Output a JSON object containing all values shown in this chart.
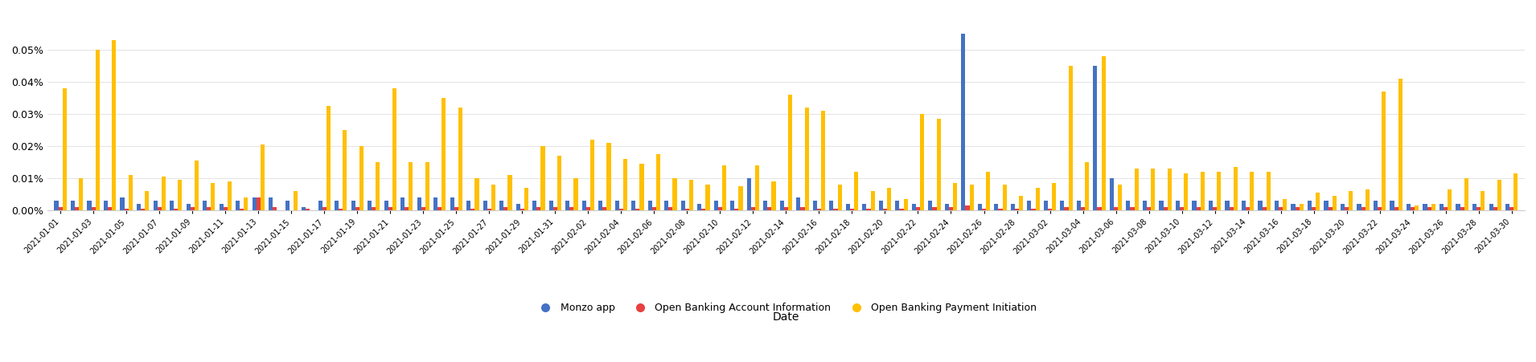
{
  "xlabel": "Date",
  "colors": {
    "monzo_app": "#4472C4",
    "ob_account": "#E84040",
    "ob_payment": "#FFC000"
  },
  "legend": [
    "Monzo app",
    "Open Banking Account Information",
    "Open Banking Payment Initiation"
  ],
  "background_color": "#ffffff",
  "grid_color": "#e5e5e5",
  "dates": [
    "2021-01-01",
    "2021-01-02",
    "2021-01-03",
    "2021-01-04",
    "2021-01-05",
    "2021-01-06",
    "2021-01-07",
    "2021-01-08",
    "2021-01-09",
    "2021-01-10",
    "2021-01-11",
    "2021-01-12",
    "2021-01-13",
    "2021-01-14",
    "2021-01-15",
    "2021-01-16",
    "2021-01-17",
    "2021-01-18",
    "2021-01-19",
    "2021-01-20",
    "2021-01-21",
    "2021-01-22",
    "2021-01-23",
    "2021-01-24",
    "2021-01-25",
    "2021-01-26",
    "2021-01-27",
    "2021-01-28",
    "2021-01-29",
    "2021-01-30",
    "2021-01-31",
    "2021-02-01",
    "2021-02-02",
    "2021-02-03",
    "2021-02-04",
    "2021-02-05",
    "2021-02-06",
    "2021-02-07",
    "2021-02-08",
    "2021-02-09",
    "2021-02-10",
    "2021-02-11",
    "2021-02-12",
    "2021-02-13",
    "2021-02-14",
    "2021-02-15",
    "2021-02-16",
    "2021-02-17",
    "2021-02-18",
    "2021-02-19",
    "2021-02-20",
    "2021-02-21",
    "2021-02-22",
    "2021-02-23",
    "2021-02-24",
    "2021-02-25",
    "2021-02-26",
    "2021-02-27",
    "2021-02-28",
    "2021-03-01",
    "2021-03-02",
    "2021-03-03",
    "2021-03-04",
    "2021-03-05",
    "2021-03-06",
    "2021-03-07",
    "2021-03-08",
    "2021-03-09",
    "2021-03-10",
    "2021-03-11",
    "2021-03-12",
    "2021-03-13",
    "2021-03-14",
    "2021-03-15",
    "2021-03-16",
    "2021-03-17",
    "2021-03-18",
    "2021-03-19",
    "2021-03-20",
    "2021-03-21",
    "2021-03-22",
    "2021-03-23",
    "2021-03-24",
    "2021-03-25",
    "2021-03-26",
    "2021-03-27",
    "2021-03-28",
    "2021-03-29",
    "2021-03-30"
  ],
  "monzo_app": [
    3e-05,
    3e-05,
    3e-05,
    3e-05,
    4e-05,
    2e-05,
    3e-05,
    3e-05,
    2e-05,
    3e-05,
    2e-05,
    3e-05,
    4e-05,
    4e-05,
    3e-05,
    1e-05,
    3e-05,
    3e-05,
    3e-05,
    3e-05,
    3e-05,
    4e-05,
    4e-05,
    4e-05,
    4e-05,
    3e-05,
    3e-05,
    3e-05,
    2e-05,
    3e-05,
    3e-05,
    3e-05,
    3e-05,
    3e-05,
    3e-05,
    3e-05,
    3e-05,
    3e-05,
    3e-05,
    2e-05,
    3e-05,
    3e-05,
    0.0001,
    3e-05,
    3e-05,
    4e-05,
    3e-05,
    3e-05,
    2e-05,
    2e-05,
    3e-05,
    3e-05,
    2e-05,
    3e-05,
    2e-05,
    0.00055,
    2e-05,
    2e-05,
    2e-05,
    3e-05,
    3e-05,
    3e-05,
    3e-05,
    0.00045,
    0.0001,
    3e-05,
    3e-05,
    3e-05,
    3e-05,
    3e-05,
    3e-05,
    3e-05,
    3e-05,
    3e-05,
    3e-05,
    2e-05,
    3e-05,
    3e-05,
    2e-05,
    2e-05,
    3e-05,
    3e-05,
    2e-05,
    2e-05,
    2e-05,
    2e-05,
    2e-05,
    2e-05,
    2e-05
  ],
  "ob_account": [
    1e-05,
    1e-05,
    1e-05,
    1e-05,
    5e-06,
    5e-06,
    1e-05,
    5e-06,
    1e-05,
    1e-05,
    1e-05,
    5e-06,
    4e-05,
    1e-05,
    0.0,
    5e-06,
    1e-05,
    5e-06,
    1e-05,
    1e-05,
    1e-05,
    1e-05,
    1e-05,
    1e-05,
    1e-05,
    5e-06,
    5e-06,
    1e-05,
    5e-06,
    1e-05,
    1e-05,
    1e-05,
    1e-05,
    1e-05,
    5e-06,
    5e-06,
    1e-05,
    1e-05,
    5e-06,
    5e-06,
    1e-05,
    5e-06,
    1e-05,
    1e-05,
    1e-05,
    1e-05,
    5e-06,
    5e-06,
    5e-06,
    5e-06,
    5e-06,
    5e-06,
    1e-05,
    1e-05,
    1e-05,
    1.5e-05,
    5e-06,
    5e-06,
    5e-06,
    5e-06,
    5e-06,
    1e-05,
    1e-05,
    1e-05,
    1e-05,
    1e-05,
    1e-05,
    1e-05,
    1e-05,
    1e-05,
    1e-05,
    1e-05,
    1e-05,
    1e-05,
    1e-05,
    1e-05,
    1e-05,
    1e-05,
    1e-05,
    1e-05,
    1e-05,
    1e-05,
    1e-05,
    1e-05,
    1e-05,
    1e-05,
    1e-05,
    1e-05,
    1e-05
  ],
  "ob_payment": [
    0.00038,
    0.0001,
    0.0005,
    0.00053,
    0.00011,
    6e-05,
    0.000105,
    9.5e-05,
    0.000155,
    8.5e-05,
    9e-05,
    4e-05,
    0.000205,
    0.0,
    6e-05,
    0.0,
    0.000325,
    0.00025,
    0.0002,
    0.00015,
    0.00038,
    0.00015,
    0.00015,
    0.00035,
    0.00032,
    0.0001,
    8e-05,
    0.00011,
    7e-05,
    0.0002,
    0.00017,
    0.0001,
    0.00022,
    0.00021,
    0.00016,
    0.000145,
    0.000175,
    0.0001,
    9.5e-05,
    8e-05,
    0.00014,
    7.5e-05,
    0.00014,
    9e-05,
    0.00036,
    0.00032,
    0.00031,
    8e-05,
    0.00012,
    6e-05,
    7e-05,
    3.5e-05,
    0.0003,
    0.000285,
    8.5e-05,
    8e-05,
    0.00012,
    8e-05,
    4.5e-05,
    7e-05,
    8.5e-05,
    0.00045,
    0.00015,
    0.00048,
    8e-05,
    0.00013,
    0.00013,
    0.00013,
    0.000115,
    0.00012,
    0.00012,
    0.000135,
    0.00012,
    0.00012,
    3.5e-05,
    2e-05,
    5.5e-05,
    4.5e-05,
    6e-05,
    6.5e-05,
    0.00037,
    0.00041,
    1.5e-05,
    2e-05,
    6.5e-05,
    0.0001,
    6e-05,
    9.5e-05,
    0.000115
  ],
  "ylim": [
    0,
    0.00062
  ],
  "yticks": [
    0,
    0.0001,
    0.0002,
    0.0003,
    0.0004,
    0.0005
  ],
  "ytick_labels": [
    "0.00%",
    "0.01%",
    "0.02%",
    "0.03%",
    "0.04%",
    "0.05%"
  ]
}
